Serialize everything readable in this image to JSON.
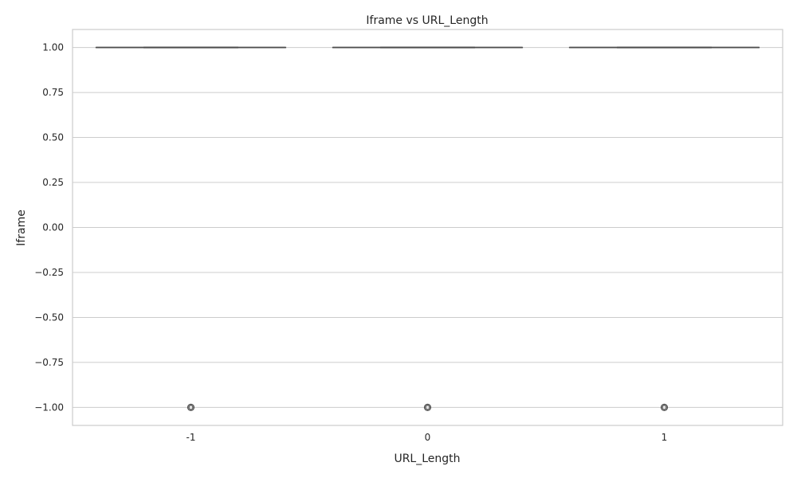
{
  "chart_data": {
    "type": "box",
    "title": "Iframe vs URL_Length",
    "xlabel": "URL_Length",
    "ylabel": "Iframe",
    "categories": [
      "-1",
      "0",
      "1"
    ],
    "ylim": [
      -1.1,
      1.1
    ],
    "yticks": [
      1.0,
      0.75,
      0.5,
      0.25,
      0.0,
      -0.25,
      -0.5,
      -0.75,
      -1.0
    ],
    "ytick_labels": [
      "1.00",
      "0.75",
      "0.50",
      "0.25",
      "0.00",
      "−0.25",
      "−0.50",
      "−0.75",
      "−1.00"
    ],
    "grid": true,
    "boxes": [
      {
        "category": "-1",
        "min": 1,
        "q1": 1,
        "median": 1,
        "q3": 1,
        "max": 1,
        "outliers": [
          -1
        ]
      },
      {
        "category": "0",
        "min": 1,
        "q1": 1,
        "median": 1,
        "q3": 1,
        "max": 1,
        "outliers": [
          -1
        ]
      },
      {
        "category": "1",
        "min": 1,
        "q1": 1,
        "median": 1,
        "q3": 1,
        "max": 1,
        "outliers": [
          -1
        ]
      }
    ],
    "colors": {
      "line": "#4d4d4d",
      "grid": "#cccccc",
      "text": "#262626"
    }
  }
}
